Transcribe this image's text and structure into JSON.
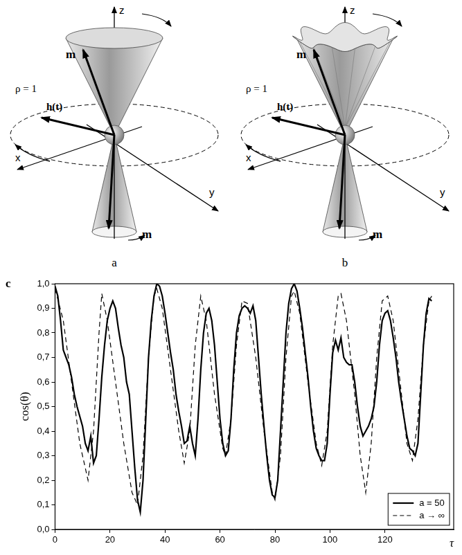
{
  "panels": [
    {
      "letter": "a",
      "axis_labels": {
        "x": "x",
        "y": "y",
        "z": "z"
      },
      "moment_labels": [
        "m",
        "m"
      ],
      "field_label": "h(t)",
      "orbit_label": "ρ = 1"
    },
    {
      "letter": "b",
      "axis_labels": {
        "x": "x",
        "y": "y",
        "z": "z"
      },
      "moment_labels": [
        "m",
        "m"
      ],
      "field_label": "h(t)",
      "orbit_label": "ρ = 1"
    }
  ],
  "chart_panel_letter": "c",
  "chart_data": {
    "type": "line",
    "xlabel": "τ",
    "ylabel": "cos(θ)",
    "xlim": [
      0,
      145
    ],
    "ylim": [
      0,
      1
    ],
    "xticks": [
      0,
      20,
      40,
      60,
      80,
      100,
      120
    ],
    "yticks": [
      {
        "value": 0,
        "label": "0,0"
      },
      {
        "value": 0.1,
        "label": "0,1"
      },
      {
        "value": 0.2,
        "label": "0,2"
      },
      {
        "value": 0.3,
        "label": "0,3"
      },
      {
        "value": 0.4,
        "label": "0,4"
      },
      {
        "value": 0.5,
        "label": "0,5"
      },
      {
        "value": 0.6,
        "label": "0,6"
      },
      {
        "value": 0.7,
        "label": "0,7"
      },
      {
        "value": 0.8,
        "label": "0,8"
      },
      {
        "value": 0.9,
        "label": "0,9"
      },
      {
        "value": 1,
        "label": "1,0"
      }
    ],
    "grid": false,
    "legend": "lower right",
    "series": [
      {
        "name": "a = 50",
        "color": "#000000",
        "line_style": "solid",
        "x": [
          0,
          1,
          2,
          3,
          4,
          5,
          6,
          7,
          8,
          9,
          10,
          11,
          12,
          13,
          14,
          15,
          16,
          17,
          18,
          19,
          20,
          21,
          22,
          23,
          24,
          25,
          26,
          27,
          28,
          29,
          30,
          31,
          32,
          33,
          34,
          35,
          36,
          37,
          38,
          39,
          40,
          41,
          42,
          43,
          44,
          45,
          46,
          47,
          48,
          49,
          50,
          51,
          52,
          53,
          54,
          55,
          56,
          57,
          58,
          59,
          60,
          61,
          62,
          63,
          64,
          65,
          66,
          67,
          68,
          69,
          70,
          71,
          72,
          73,
          74,
          75,
          76,
          77,
          78,
          79,
          80,
          81,
          82,
          83,
          84,
          85,
          86,
          87,
          88,
          89,
          90,
          91,
          92,
          93,
          94,
          95,
          96,
          97,
          98,
          99,
          100,
          101,
          102,
          103,
          104,
          105,
          106,
          107,
          108,
          109,
          110,
          111,
          112,
          113,
          114,
          115,
          116,
          117,
          118,
          119,
          120,
          121,
          122,
          123,
          124,
          125,
          126,
          127,
          128,
          129,
          130,
          131,
          132,
          133,
          134,
          135,
          136,
          137
        ],
        "values": [
          0.99,
          0.95,
          0.85,
          0.73,
          0.7,
          0.67,
          0.62,
          0.55,
          0.5,
          0.46,
          0.42,
          0.35,
          0.32,
          0.38,
          0.27,
          0.3,
          0.45,
          0.62,
          0.75,
          0.85,
          0.9,
          0.93,
          0.9,
          0.82,
          0.75,
          0.7,
          0.6,
          0.55,
          0.4,
          0.25,
          0.12,
          0.07,
          0.2,
          0.45,
          0.7,
          0.85,
          0.95,
          1.0,
          0.99,
          0.95,
          0.88,
          0.8,
          0.72,
          0.65,
          0.55,
          0.48,
          0.42,
          0.35,
          0.36,
          0.42,
          0.35,
          0.3,
          0.45,
          0.65,
          0.8,
          0.88,
          0.9,
          0.85,
          0.75,
          0.6,
          0.45,
          0.35,
          0.3,
          0.32,
          0.45,
          0.65,
          0.8,
          0.87,
          0.9,
          0.91,
          0.9,
          0.88,
          0.91,
          0.85,
          0.7,
          0.55,
          0.42,
          0.3,
          0.2,
          0.14,
          0.13,
          0.2,
          0.4,
          0.6,
          0.8,
          0.92,
          0.98,
          1.0,
          0.97,
          0.9,
          0.82,
          0.72,
          0.62,
          0.5,
          0.4,
          0.33,
          0.3,
          0.28,
          0.28,
          0.35,
          0.55,
          0.72,
          0.77,
          0.73,
          0.78,
          0.7,
          0.68,
          0.67,
          0.67,
          0.6,
          0.5,
          0.42,
          0.38,
          0.4,
          0.42,
          0.45,
          0.5,
          0.6,
          0.75,
          0.85,
          0.88,
          0.89,
          0.85,
          0.78,
          0.7,
          0.6,
          0.52,
          0.45,
          0.38,
          0.33,
          0.32,
          0.3,
          0.35,
          0.55,
          0.75,
          0.88,
          0.94,
          0.93
        ]
      },
      {
        "name": "a → ∞",
        "color": "#000000",
        "line_style": "dashed",
        "x": [
          0,
          3,
          6,
          9,
          12,
          14,
          16,
          17,
          19,
          22,
          25,
          28,
          30,
          32,
          34,
          36,
          37,
          39,
          42,
          45,
          47,
          49,
          51,
          53,
          55,
          58,
          61,
          62,
          64,
          66,
          68,
          70,
          73,
          76,
          79,
          80,
          82,
          84,
          86,
          87,
          89,
          92,
          95,
          97,
          99,
          101,
          103,
          104,
          106,
          109,
          111,
          113,
          115,
          117,
          119,
          121,
          123,
          126,
          128,
          130,
          132,
          134,
          136,
          137
        ],
        "values": [
          0.98,
          0.85,
          0.6,
          0.35,
          0.2,
          0.4,
          0.8,
          0.96,
          0.85,
          0.6,
          0.35,
          0.15,
          0.1,
          0.3,
          0.7,
          0.95,
          0.98,
          0.9,
          0.65,
          0.4,
          0.27,
          0.4,
          0.75,
          0.95,
          0.85,
          0.55,
          0.33,
          0.3,
          0.45,
          0.75,
          0.93,
          0.92,
          0.7,
          0.4,
          0.15,
          0.12,
          0.3,
          0.7,
          0.95,
          0.97,
          0.88,
          0.6,
          0.35,
          0.26,
          0.4,
          0.75,
          0.95,
          0.96,
          0.85,
          0.55,
          0.3,
          0.15,
          0.35,
          0.7,
          0.93,
          0.95,
          0.85,
          0.55,
          0.35,
          0.28,
          0.45,
          0.75,
          0.93,
          0.95
        ]
      }
    ]
  }
}
